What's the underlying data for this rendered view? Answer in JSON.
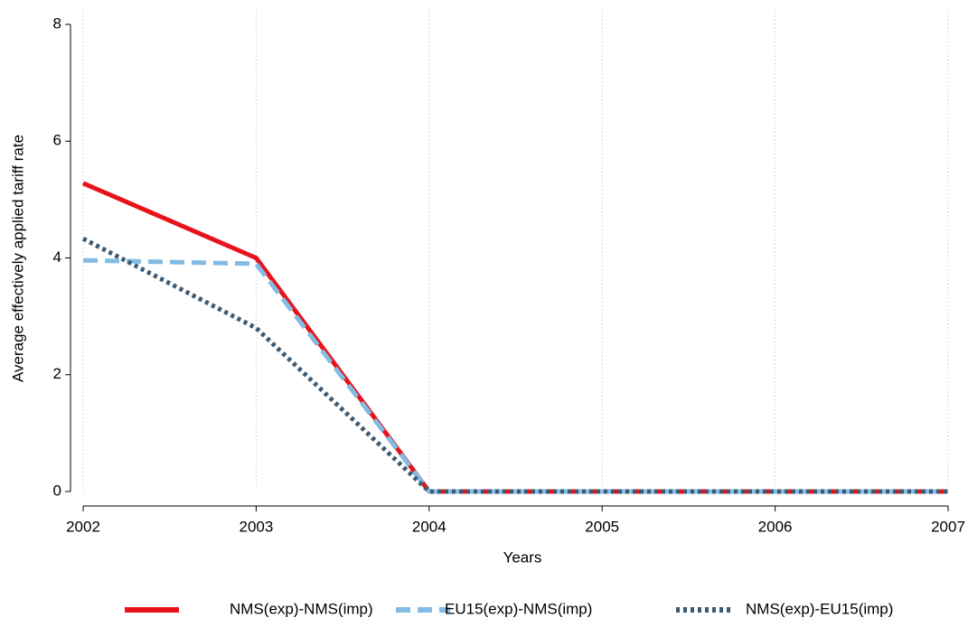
{
  "chart_data": {
    "type": "line",
    "x_label": "Years",
    "y_label": "Average effectively applied tariff rate",
    "x": [
      2002,
      2003,
      2004,
      2005,
      2006,
      2007
    ],
    "series": [
      {
        "name": "NMS(exp)-NMS(imp)",
        "color": "#e8121b",
        "dash": "solid",
        "values": [
          5.28,
          4.0,
          0,
          0,
          0,
          0
        ]
      },
      {
        "name": "EU15(exp)-NMS(imp)",
        "color": "#82bbe3",
        "dash": "dashed",
        "values": [
          3.96,
          3.9,
          0,
          0,
          0,
          0
        ]
      },
      {
        "name": "NMS(exp)-EU15(imp)",
        "color": "#3d5a73",
        "dash": "dotted",
        "values": [
          4.33,
          2.8,
          0,
          0,
          0,
          0
        ]
      }
    ],
    "xlim": [
      2002,
      2007
    ],
    "xticks": [
      2002,
      2003,
      2004,
      2005,
      2006,
      2007
    ],
    "ylim": [
      0,
      8
    ],
    "yticks": [
      0,
      2,
      4,
      6,
      8
    ],
    "grid": "x",
    "legend": "bottom"
  }
}
